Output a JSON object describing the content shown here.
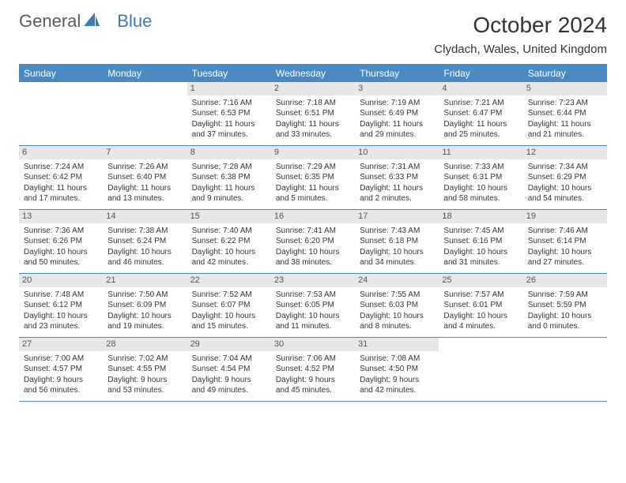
{
  "brand": {
    "name1": "General",
    "name2": "Blue"
  },
  "title": "October 2024",
  "location": "Clydach, Wales, United Kingdom",
  "styling": {
    "header_bg": "#4a8ac2",
    "header_fg": "#ffffff",
    "day_num_bg": "#e7e7e7",
    "day_num_fg": "#555555",
    "border_color": "#4a8ac2",
    "body_font_size": 10,
    "title_font_size": 28,
    "location_font_size": 15,
    "dow_font_size": 12
  },
  "days_of_week": [
    "Sunday",
    "Monday",
    "Tuesday",
    "Wednesday",
    "Thursday",
    "Friday",
    "Saturday"
  ],
  "weeks": [
    [
      {
        "num": "",
        "lines": []
      },
      {
        "num": "",
        "lines": []
      },
      {
        "num": "1",
        "lines": [
          "Sunrise: 7:16 AM",
          "Sunset: 6:53 PM",
          "Daylight: 11 hours and 37 minutes."
        ]
      },
      {
        "num": "2",
        "lines": [
          "Sunrise: 7:18 AM",
          "Sunset: 6:51 PM",
          "Daylight: 11 hours and 33 minutes."
        ]
      },
      {
        "num": "3",
        "lines": [
          "Sunrise: 7:19 AM",
          "Sunset: 6:49 PM",
          "Daylight: 11 hours and 29 minutes."
        ]
      },
      {
        "num": "4",
        "lines": [
          "Sunrise: 7:21 AM",
          "Sunset: 6:47 PM",
          "Daylight: 11 hours and 25 minutes."
        ]
      },
      {
        "num": "5",
        "lines": [
          "Sunrise: 7:23 AM",
          "Sunset: 6:44 PM",
          "Daylight: 11 hours and 21 minutes."
        ]
      }
    ],
    [
      {
        "num": "6",
        "lines": [
          "Sunrise: 7:24 AM",
          "Sunset: 6:42 PM",
          "Daylight: 11 hours and 17 minutes."
        ]
      },
      {
        "num": "7",
        "lines": [
          "Sunrise: 7:26 AM",
          "Sunset: 6:40 PM",
          "Daylight: 11 hours and 13 minutes."
        ]
      },
      {
        "num": "8",
        "lines": [
          "Sunrise: 7:28 AM",
          "Sunset: 6:38 PM",
          "Daylight: 11 hours and 9 minutes."
        ]
      },
      {
        "num": "9",
        "lines": [
          "Sunrise: 7:29 AM",
          "Sunset: 6:35 PM",
          "Daylight: 11 hours and 5 minutes."
        ]
      },
      {
        "num": "10",
        "lines": [
          "Sunrise: 7:31 AM",
          "Sunset: 6:33 PM",
          "Daylight: 11 hours and 2 minutes."
        ]
      },
      {
        "num": "11",
        "lines": [
          "Sunrise: 7:33 AM",
          "Sunset: 6:31 PM",
          "Daylight: 10 hours and 58 minutes."
        ]
      },
      {
        "num": "12",
        "lines": [
          "Sunrise: 7:34 AM",
          "Sunset: 6:29 PM",
          "Daylight: 10 hours and 54 minutes."
        ]
      }
    ],
    [
      {
        "num": "13",
        "lines": [
          "Sunrise: 7:36 AM",
          "Sunset: 6:26 PM",
          "Daylight: 10 hours and 50 minutes."
        ]
      },
      {
        "num": "14",
        "lines": [
          "Sunrise: 7:38 AM",
          "Sunset: 6:24 PM",
          "Daylight: 10 hours and 46 minutes."
        ]
      },
      {
        "num": "15",
        "lines": [
          "Sunrise: 7:40 AM",
          "Sunset: 6:22 PM",
          "Daylight: 10 hours and 42 minutes."
        ]
      },
      {
        "num": "16",
        "lines": [
          "Sunrise: 7:41 AM",
          "Sunset: 6:20 PM",
          "Daylight: 10 hours and 38 minutes."
        ]
      },
      {
        "num": "17",
        "lines": [
          "Sunrise: 7:43 AM",
          "Sunset: 6:18 PM",
          "Daylight: 10 hours and 34 minutes."
        ]
      },
      {
        "num": "18",
        "lines": [
          "Sunrise: 7:45 AM",
          "Sunset: 6:16 PM",
          "Daylight: 10 hours and 31 minutes."
        ]
      },
      {
        "num": "19",
        "lines": [
          "Sunrise: 7:46 AM",
          "Sunset: 6:14 PM",
          "Daylight: 10 hours and 27 minutes."
        ]
      }
    ],
    [
      {
        "num": "20",
        "lines": [
          "Sunrise: 7:48 AM",
          "Sunset: 6:12 PM",
          "Daylight: 10 hours and 23 minutes."
        ]
      },
      {
        "num": "21",
        "lines": [
          "Sunrise: 7:50 AM",
          "Sunset: 6:09 PM",
          "Daylight: 10 hours and 19 minutes."
        ]
      },
      {
        "num": "22",
        "lines": [
          "Sunrise: 7:52 AM",
          "Sunset: 6:07 PM",
          "Daylight: 10 hours and 15 minutes."
        ]
      },
      {
        "num": "23",
        "lines": [
          "Sunrise: 7:53 AM",
          "Sunset: 6:05 PM",
          "Daylight: 10 hours and 11 minutes."
        ]
      },
      {
        "num": "24",
        "lines": [
          "Sunrise: 7:55 AM",
          "Sunset: 6:03 PM",
          "Daylight: 10 hours and 8 minutes."
        ]
      },
      {
        "num": "25",
        "lines": [
          "Sunrise: 7:57 AM",
          "Sunset: 6:01 PM",
          "Daylight: 10 hours and 4 minutes."
        ]
      },
      {
        "num": "26",
        "lines": [
          "Sunrise: 7:59 AM",
          "Sunset: 5:59 PM",
          "Daylight: 10 hours and 0 minutes."
        ]
      }
    ],
    [
      {
        "num": "27",
        "lines": [
          "Sunrise: 7:00 AM",
          "Sunset: 4:57 PM",
          "Daylight: 9 hours and 56 minutes."
        ]
      },
      {
        "num": "28",
        "lines": [
          "Sunrise: 7:02 AM",
          "Sunset: 4:55 PM",
          "Daylight: 9 hours and 53 minutes."
        ]
      },
      {
        "num": "29",
        "lines": [
          "Sunrise: 7:04 AM",
          "Sunset: 4:54 PM",
          "Daylight: 9 hours and 49 minutes."
        ]
      },
      {
        "num": "30",
        "lines": [
          "Sunrise: 7:06 AM",
          "Sunset: 4:52 PM",
          "Daylight: 9 hours and 45 minutes."
        ]
      },
      {
        "num": "31",
        "lines": [
          "Sunrise: 7:08 AM",
          "Sunset: 4:50 PM",
          "Daylight: 9 hours and 42 minutes."
        ]
      },
      {
        "num": "",
        "lines": []
      },
      {
        "num": "",
        "lines": []
      }
    ]
  ]
}
